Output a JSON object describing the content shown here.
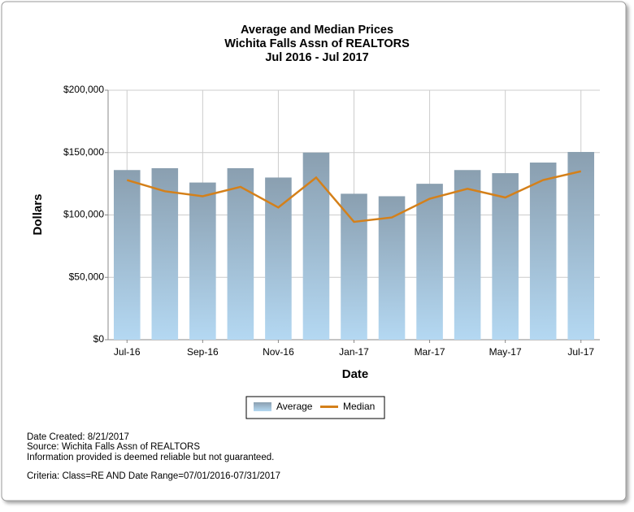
{
  "chart_data": {
    "type": "combo",
    "title_lines": [
      "Average and Median Prices",
      "Wichita Falls Assn of REALTORS",
      "Jul 2016 - Jul 2017"
    ],
    "x_label": "Date",
    "y_label": "Dollars",
    "categories": [
      "Jul-16",
      null,
      "Sep-16",
      null,
      "Nov-16",
      null,
      "Jan-17",
      null,
      "Mar-17",
      null,
      "May-17",
      null,
      "Jul-17"
    ],
    "series": [
      {
        "name": "Average",
        "type": "bar",
        "color": "#8a9fb0",
        "color_bottom": "#b4d8f2",
        "values": [
          136000,
          137500,
          126000,
          137500,
          130000,
          150000,
          117000,
          115000,
          125000,
          136000,
          133500,
          142000,
          150500
        ]
      },
      {
        "name": "Median",
        "type": "line",
        "color": "#d4801a",
        "values": [
          128000,
          119000,
          115000,
          122500,
          106000,
          130000,
          94500,
          98000,
          113000,
          121000,
          114000,
          128000,
          135000
        ]
      }
    ],
    "ylim": [
      0,
      200000
    ],
    "yticks": [
      {
        "value": 0,
        "label": "$0"
      },
      {
        "value": 50000,
        "label": "$50,000"
      },
      {
        "value": 100000,
        "label": "$100,000"
      },
      {
        "value": 150000,
        "label": "$150,000"
      },
      {
        "value": 200000,
        "label": "$200,000"
      }
    ],
    "grid": true,
    "legend": "bottom",
    "notes": [
      "Date Created: 8/21/2017",
      "Source: Wichita Falls Assn of REALTORS",
      "Information provided is deemed reliable but not guaranteed.",
      "Criteria: Class=RE AND Date Range=07/01/2016-07/31/2017"
    ]
  }
}
